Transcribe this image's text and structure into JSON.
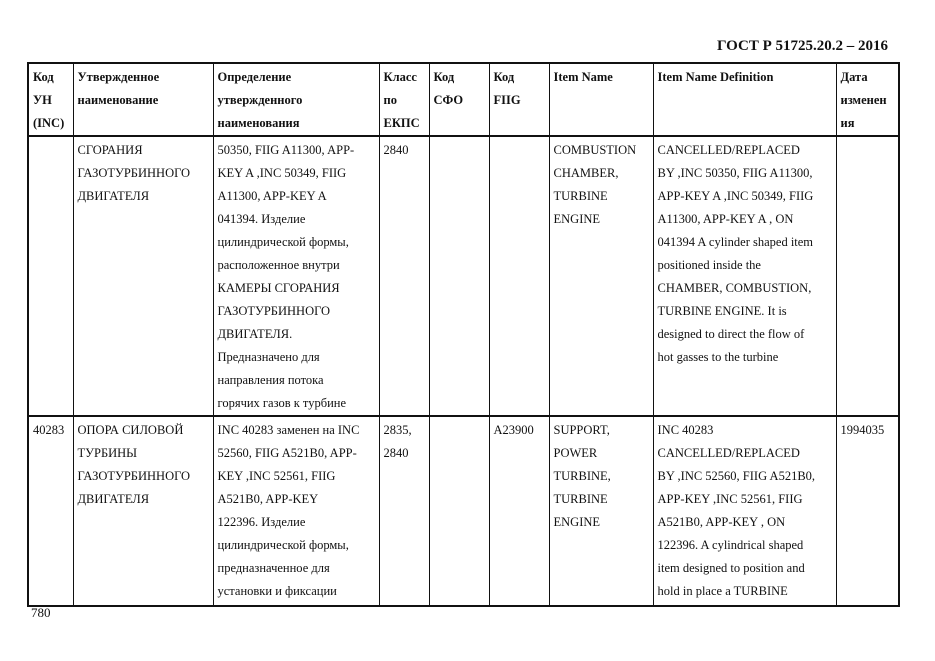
{
  "header": {
    "doc_id": "ГОСТ Р 51725.20.2 – 2016"
  },
  "table": {
    "columns": [
      "Код\nУН\n(INC)",
      "Утвержденное\nнаименование",
      "Определение\nутвержденного\nнаименования",
      "Класс\nпо\nЕКПС",
      "Код\nСФО",
      "Код\nFIIG",
      "Item Name",
      "Item Name Definition",
      "Дата\nизменен\nия"
    ],
    "rows": [
      [
        "",
        "СГОРАНИЯ\nГАЗОТУРБИННОГО\nДВИГАТЕЛЯ",
        "50350, FIIG A11300, APP-\nKEY A ,INC 50349, FIIG\nA11300, APP-KEY A\n041394. Изделие\nцилиндрической формы,\nрасположенное внутри\nКАМЕРЫ СГОРАНИЯ\nГАЗОТУРБИННОГО\nДВИГАТЕЛЯ.\nПредназначено для\nнаправления потока\nгорячих газов к турбине",
        "2840",
        "",
        "",
        "COMBUSTION\nCHAMBER,\nTURBINE\nENGINE",
        "CANCELLED/REPLACED\nBY ,INC 50350, FIIG A11300,\nAPP-KEY A  ,INC 50349, FIIG\nA11300, APP-KEY A  , ON\n041394 A cylinder shaped item\npositioned inside the\nCHAMBER, COMBUSTION,\nTURBINE ENGINE. It is\ndesigned to direct the flow of\nhot gasses to the turbine",
        ""
      ],
      [
        "40283",
        "ОПОРА СИЛОВОЙ\nТУРБИНЫ\nГАЗОТУРБИННОГО\nДВИГАТЕЛЯ",
        "INC 40283 заменен на INC\n52560, FIIG A521B0, APP-\nKEY ,INC 52561, FIIG\nA521B0, APP-KEY\n122396. Изделие\nцилиндрической формы,\nпредназначенное для\nустановки и фиксации",
        "2835,\n2840",
        "",
        "A23900",
        "SUPPORT,\nPOWER\nTURBINE,\nTURBINE\nENGINE",
        "INC 40283\nCANCELLED/REPLACED\nBY ,INC 52560, FIIG A521B0,\nAPP-KEY    ,INC 52561, FIIG\nA521B0, APP-KEY    , ON\n122396. A cylindrical shaped\nitem designed to position and\nhold in place a TURBINE",
        "1994035"
      ]
    ]
  },
  "footer": {
    "page_number": "780"
  }
}
